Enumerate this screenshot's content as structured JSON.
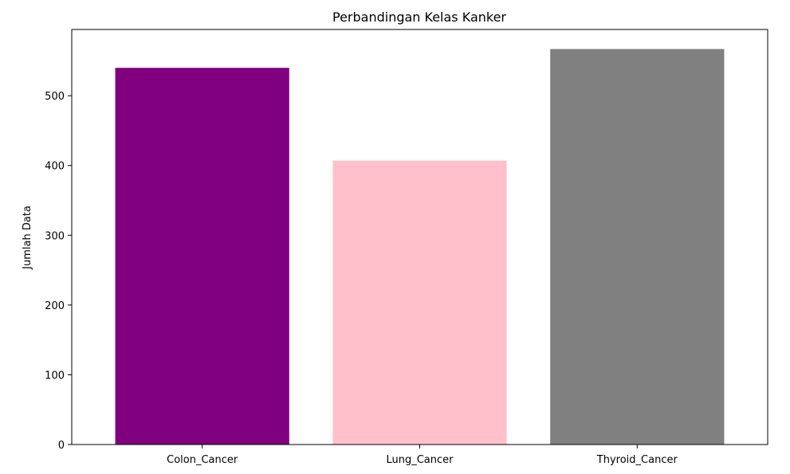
{
  "chart_data": {
    "type": "bar",
    "title": "Perbandingan Kelas Kanker",
    "xlabel": "",
    "ylabel": "Jumlah Data",
    "categories": [
      "Colon_Cancer",
      "Lung_Cancer",
      "Thyroid_Cancer"
    ],
    "values": [
      540,
      407,
      567
    ],
    "colors": [
      "#800080",
      "#ffc0cb",
      "#808080"
    ],
    "ylim": [
      0,
      595
    ],
    "yticks": [
      0,
      100,
      200,
      300,
      400,
      500
    ],
    "ytick_labels": [
      "0",
      "100",
      "200",
      "300",
      "400",
      "500"
    ],
    "grid": false,
    "legend": "none"
  }
}
